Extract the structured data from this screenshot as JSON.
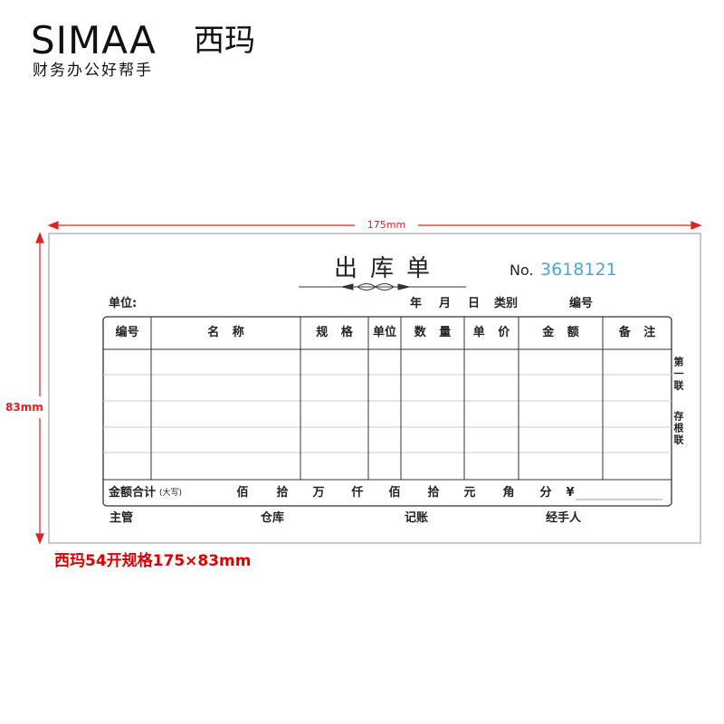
{
  "brand": {
    "logo": "SIMAA",
    "logo_cn": "西玛",
    "tagline": "财务办公好帮手"
  },
  "dimensions": {
    "width": "175mm",
    "height": "83mm"
  },
  "form": {
    "title": "出库单",
    "number_label": "No.",
    "number": "3618121",
    "header_fields": [
      "单位:",
      "年",
      "月",
      "日",
      "类别",
      "编号"
    ],
    "columns": [
      "编号",
      "名 称",
      "规 格",
      "单位",
      "数 量",
      "单 价",
      "金 额",
      "备 注"
    ],
    "total": {
      "label": "金额合计",
      "note": "(大写)",
      "units": [
        "佰",
        "拾",
        "万",
        "仟",
        "佰",
        "拾",
        "元",
        "角",
        "分",
        "¥"
      ]
    },
    "signatures": [
      "主管",
      "仓库",
      "记账",
      "经手人"
    ],
    "copy_label": [
      "第一联",
      "存根联"
    ]
  },
  "caption": "西玛54开规格175×83mm"
}
